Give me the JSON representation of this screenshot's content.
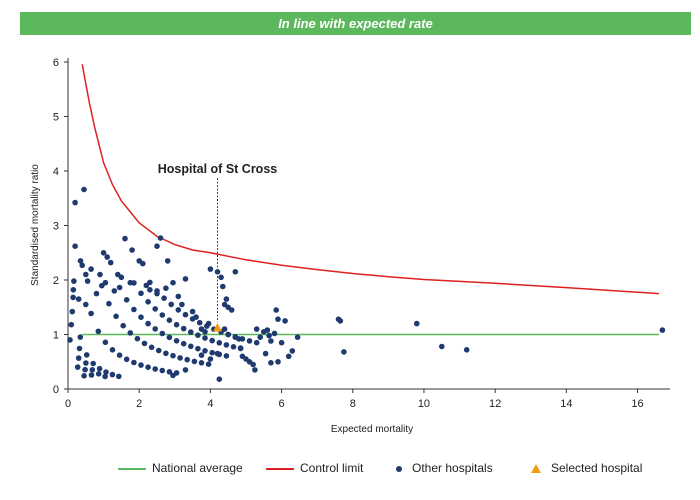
{
  "banner": {
    "text": "In line with expected rate"
  },
  "colors": {
    "banner": "#5cb85c",
    "national": "#5cb85c",
    "control": "#e02020",
    "others": "#1f3a6e",
    "selected": "#f39c12"
  },
  "chart_data": {
    "type": "scatter",
    "title": "",
    "xlabel": "Expected mortality",
    "ylabel": "Standardised mortality ratio",
    "xlim": [
      0,
      16.8
    ],
    "ylim": [
      0,
      6
    ],
    "xticks": [
      0,
      2,
      4,
      6,
      8,
      10,
      12,
      14,
      16
    ],
    "yticks": [
      0,
      1,
      2,
      3,
      4,
      5,
      6
    ],
    "grid": false,
    "legend_position": "bottom",
    "annotation": {
      "text": "Hospital of St Cross",
      "x": 4.2
    },
    "national_average": {
      "name": "National average",
      "y": 1,
      "x_range": [
        0.4,
        16.6
      ]
    },
    "control_limit": {
      "name": "Control limit",
      "points": [
        [
          0.4,
          5.96
        ],
        [
          0.5,
          5.6
        ],
        [
          0.6,
          5.25
        ],
        [
          0.75,
          4.8
        ],
        [
          1,
          4.15
        ],
        [
          1.25,
          3.75
        ],
        [
          1.5,
          3.45
        ],
        [
          2,
          3.05
        ],
        [
          2.5,
          2.8
        ],
        [
          3,
          2.65
        ],
        [
          3.5,
          2.55
        ],
        [
          4,
          2.5
        ],
        [
          5,
          2.37
        ],
        [
          6,
          2.27
        ],
        [
          7,
          2.19
        ],
        [
          8,
          2.12
        ],
        [
          9,
          2.06
        ],
        [
          10,
          2.01
        ],
        [
          12,
          1.94
        ],
        [
          14,
          1.86
        ],
        [
          16.6,
          1.75
        ]
      ]
    },
    "other_hospitals": {
      "name": "Other hospitals",
      "points": [
        [
          0.2,
          3.42
        ],
        [
          0.45,
          3.66
        ],
        [
          0.2,
          2.62
        ],
        [
          0.35,
          2.35
        ],
        [
          0.4,
          2.27
        ],
        [
          0.5,
          2.1
        ],
        [
          0.55,
          1.98
        ],
        [
          0.65,
          2.2
        ],
        [
          0.8,
          1.75
        ],
        [
          0.9,
          2.1
        ],
        [
          0.3,
          1.65
        ],
        [
          0.15,
          1.82
        ],
        [
          0.5,
          1.55
        ],
        [
          1,
          2.5
        ],
        [
          1.1,
          2.42
        ],
        [
          1.2,
          2.32
        ],
        [
          1.05,
          1.95
        ],
        [
          1.3,
          1.8
        ],
        [
          1.4,
          2.1
        ],
        [
          1.5,
          2.05
        ],
        [
          1.6,
          2.76
        ],
        [
          1.75,
          1.95
        ],
        [
          1.8,
          2.55
        ],
        [
          2,
          2.35
        ],
        [
          2.1,
          2.3
        ],
        [
          2.2,
          1.9
        ],
        [
          2.3,
          1.82
        ],
        [
          2.5,
          2.62
        ],
        [
          2.6,
          2.77
        ],
        [
          2.8,
          2.35
        ],
        [
          2.5,
          1.75
        ],
        [
          2.75,
          1.85
        ],
        [
          2.95,
          1.95
        ],
        [
          3.1,
          1.7
        ],
        [
          3.2,
          1.55
        ],
        [
          3.3,
          2.02
        ],
        [
          3.5,
          1.42
        ],
        [
          3.6,
          1.32
        ],
        [
          3.75,
          1.1
        ],
        [
          3.85,
          1.05
        ],
        [
          3.95,
          1.2
        ],
        [
          4,
          2.2
        ],
        [
          4.2,
          2.15
        ],
        [
          4.3,
          2.05
        ],
        [
          4.35,
          1.88
        ],
        [
          4.4,
          1.55
        ],
        [
          4.45,
          1.65
        ],
        [
          4.5,
          1.5
        ],
        [
          4.6,
          1.45
        ],
        [
          4.4,
          1.1
        ],
        [
          4.5,
          1.0
        ],
        [
          4.7,
          2.15
        ],
        [
          4.7,
          0.95
        ],
        [
          4.8,
          0.92
        ],
        [
          4.85,
          0.75
        ],
        [
          4.9,
          0.6
        ],
        [
          5.0,
          0.55
        ],
        [
          5.1,
          0.5
        ],
        [
          5.2,
          0.45
        ],
        [
          5.25,
          0.35
        ],
        [
          5.3,
          1.1
        ],
        [
          5.4,
          0.95
        ],
        [
          5.5,
          1.05
        ],
        [
          5.6,
          1.08
        ],
        [
          5.65,
          0.98
        ],
        [
          5.7,
          0.88
        ],
        [
          5.8,
          1.02
        ],
        [
          5.85,
          1.45
        ],
        [
          5.9,
          1.28
        ],
        [
          6.0,
          0.85
        ],
        [
          6.1,
          1.25
        ],
        [
          6.2,
          0.6
        ],
        [
          6.3,
          0.7
        ],
        [
          6.45,
          0.95
        ],
        [
          5.55,
          0.65
        ],
        [
          5.7,
          0.48
        ],
        [
          5.9,
          0.5
        ],
        [
          7.6,
          1.28
        ],
        [
          7.65,
          1.25
        ],
        [
          7.75,
          0.68
        ],
        [
          9.8,
          1.2
        ],
        [
          10.5,
          0.78
        ],
        [
          11.2,
          0.72
        ],
        [
          16.7,
          1.08
        ],
        [
          4.25,
          0.18
        ],
        [
          4.0,
          0.55
        ],
        [
          3.3,
          0.35
        ],
        [
          2.95,
          0.25
        ],
        [
          3.75,
          0.62
        ],
        [
          4.2,
          0.65
        ]
      ],
      "curves": [
        [
          0.05,
          0.9
        ],
        [
          0.11,
          1.18
        ],
        [
          0.17,
          1.42
        ],
        [
          0.24,
          1.68
        ],
        [
          0.33,
          1.98
        ]
      ]
    },
    "selected_hospital": {
      "name": "Selected hospital",
      "x": 4.2,
      "y": 1.12
    }
  }
}
